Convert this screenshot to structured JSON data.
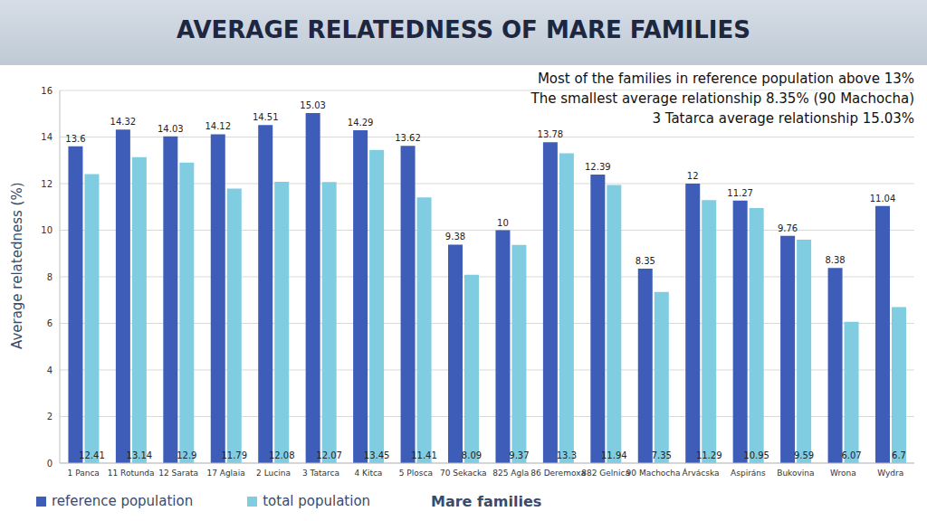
{
  "chart_data": {
    "type": "bar",
    "title": "AVERAGE RELATEDNESS OF MARE FAMILIES",
    "annotations": [
      "Most of the families in reference population above 13%",
      "The smallest average relationship 8.35% (90 Machocha)",
      "3 Tatarca average relationship 15.03%"
    ],
    "x_label": "Mare families",
    "y_label": "Average relatedness (%)",
    "categories": [
      "1 Panca",
      "11 Rotunda",
      "12 Sarata",
      "17 Aglaia",
      "2 Lucina",
      "3 Tatarca",
      "4 Kitca",
      "5 Ploscа",
      "70 Sekacka",
      "825 Agla",
      "86 Deremoxa",
      "882 Gelnica",
      "90 Machocha",
      "Árvácska",
      "Aspiráns",
      "Bukovina",
      "Wrona",
      "Wydra"
    ],
    "series": [
      {
        "name": "reference population",
        "color": "#3d5db8",
        "values": [
          13.6,
          14.32,
          14.03,
          14.12,
          14.51,
          15.03,
          14.29,
          13.62,
          9.38,
          10,
          13.78,
          12.39,
          8.35,
          12,
          11.27,
          9.76,
          8.38,
          11.04
        ]
      },
      {
        "name": "total population",
        "color": "#80cde2",
        "values": [
          12.41,
          13.14,
          12.9,
          11.79,
          12.08,
          12.07,
          13.45,
          11.41,
          8.09,
          9.37,
          13.3,
          11.94,
          7.35,
          11.29,
          10.95,
          9.59,
          6.07,
          6.7
        ]
      }
    ],
    "ylim": [
      0,
      16
    ],
    "yticks": [
      0,
      2,
      4,
      6,
      8,
      10,
      12,
      14,
      16
    ],
    "grid": true,
    "legend": "bottom-left",
    "data_labels": true
  }
}
